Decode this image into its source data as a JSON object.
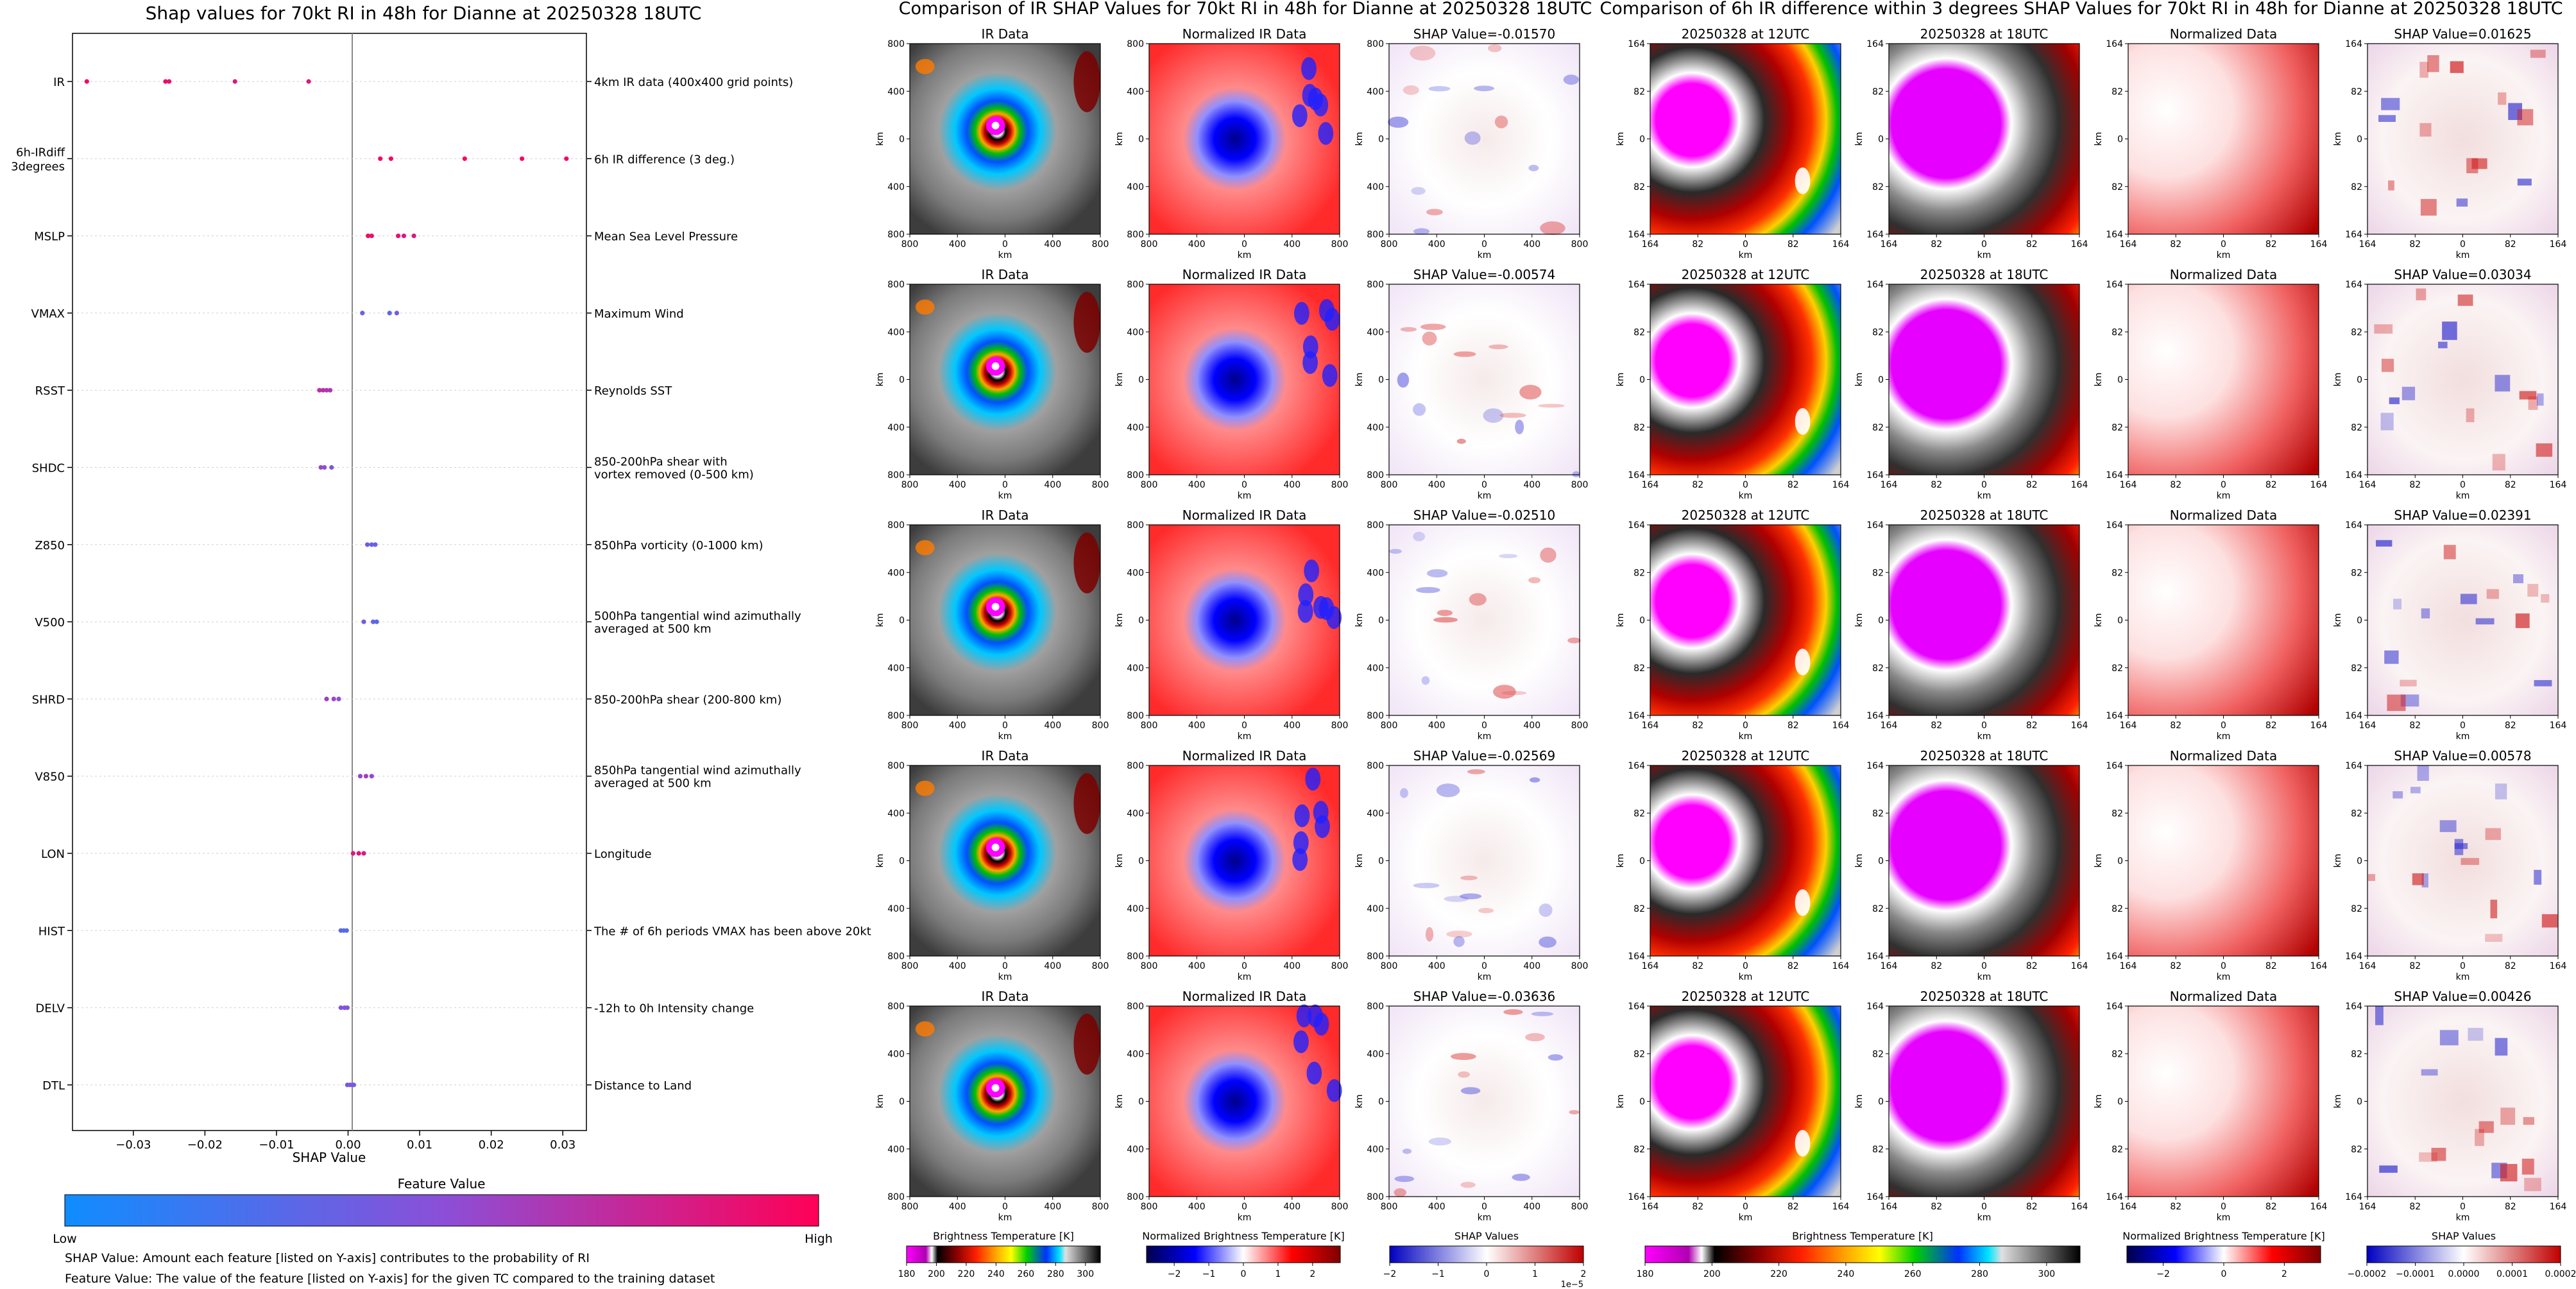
{
  "chart_data": [
    {
      "type": "scatter",
      "title": "Shap values for 70kt RI in 48h for Dianne at 20250328 18UTC",
      "xlabel": "SHAP Value",
      "ylabel": "",
      "xlim": [
        -0.0385,
        0.0333
      ],
      "xticks": [
        -0.03,
        -0.02,
        -0.01,
        0.0,
        0.01,
        0.02,
        0.03
      ],
      "xtick_labels": [
        "−0.03",
        "−0.02",
        "−0.01",
        "0.00",
        "0.01",
        "0.02",
        "0.03"
      ],
      "colorbar": {
        "title": "Feature Value",
        "low_label": "Low",
        "high_label": "High"
      },
      "colors": {
        "low": "#0f8dff",
        "mid": "#8b4fd8",
        "high": "#ff0057"
      },
      "notes": [
        "SHAP Value: Amount each feature [listed on Y-axis] contributes to the probability of RI",
        "Feature Value: The value of the feature [listed on Y-axis] for the given TC compared to the training dataset"
      ],
      "features": [
        {
          "name": "IR",
          "description": [
            "4km IR data (400x400 grid points)"
          ],
          "shap": [
            -0.0365,
            -0.0255,
            -0.025,
            -0.0158,
            -0.0055
          ],
          "feature_value": [
            0.95,
            0.95,
            0.9,
            0.85,
            0.85
          ]
        },
        {
          "name": "6h-IRdiff\n3degrees",
          "display": [
            "6h-IRdiff",
            "3degrees"
          ],
          "description": [
            "6h IR difference (3 deg.)"
          ],
          "shap": [
            0.0045,
            0.006,
            0.0163,
            0.0243,
            0.0305
          ],
          "feature_value": [
            0.95,
            0.95,
            0.95,
            0.95,
            0.95
          ]
        },
        {
          "name": "MSLP",
          "description": [
            "Mean Sea Level Pressure"
          ],
          "shap": [
            0.0028,
            0.0033,
            0.007,
            0.0078,
            0.0092
          ],
          "feature_value": [
            0.95,
            0.9,
            0.9,
            0.85,
            0.85
          ]
        },
        {
          "name": "VMAX",
          "description": [
            "Maximum Wind"
          ],
          "shap": [
            0.002,
            0.0058,
            0.0068
          ],
          "feature_value": [
            0.35,
            0.3,
            0.4
          ]
        },
        {
          "name": "RSST",
          "description": [
            "Reynolds SST"
          ],
          "shap": [
            -0.004,
            -0.0035,
            -0.003,
            -0.0025
          ],
          "feature_value": [
            0.7,
            0.7,
            0.65,
            0.65
          ]
        },
        {
          "name": "SHDC",
          "description": [
            "850-200hPa shear with",
            "vortex removed (0-500 km)"
          ],
          "shap": [
            -0.0038,
            -0.0033,
            -0.0023
          ],
          "feature_value": [
            0.55,
            0.5,
            0.45
          ]
        },
        {
          "name": "Z850",
          "description": [
            "850hPa vorticity (0-1000 km)"
          ],
          "shap": [
            0.0027,
            0.0033,
            0.0038
          ],
          "feature_value": [
            0.4,
            0.35,
            0.35
          ]
        },
        {
          "name": "V500",
          "description": [
            "500hPa tangential wind azimuthally",
            "averaged at 500 km"
          ],
          "shap": [
            0.0022,
            0.0035,
            0.004
          ],
          "feature_value": [
            0.4,
            0.35,
            0.3
          ]
        },
        {
          "name": "SHRD",
          "description": [
            "850-200hPa shear (200-800 km)"
          ],
          "shap": [
            -0.003,
            -0.002,
            -0.0013
          ],
          "feature_value": [
            0.6,
            0.55,
            0.5
          ]
        },
        {
          "name": "V850",
          "description": [
            "850hPa tangential wind azimuthally",
            "averaged at 500 km"
          ],
          "shap": [
            0.0017,
            0.0025,
            0.0033
          ],
          "feature_value": [
            0.55,
            0.6,
            0.55
          ]
        },
        {
          "name": "LON",
          "description": [
            "Longitude"
          ],
          "shap": [
            0.0007,
            0.0015,
            0.0022
          ],
          "feature_value": [
            0.85,
            0.9,
            0.85
          ]
        },
        {
          "name": "HIST",
          "description": [
            "The # of 6h periods VMAX has been above 20kt"
          ],
          "shap": [
            -0.001,
            -0.0006,
            -0.0002
          ],
          "feature_value": [
            0.3,
            0.25,
            0.3
          ]
        },
        {
          "name": "DELV",
          "description": [
            "-12h to 0h Intensity change"
          ],
          "shap": [
            -0.001,
            -0.0005,
            -0.0001
          ],
          "feature_value": [
            0.45,
            0.5,
            0.45
          ]
        },
        {
          "name": "DTL",
          "description": [
            "Distance to Land"
          ],
          "shap": [
            -0.0001,
            0.0003,
            0.0008
          ],
          "feature_value": [
            0.4,
            0.45,
            0.4
          ]
        }
      ]
    },
    {
      "type": "heatmap",
      "title": "Comparison of IR SHAP Values for 70kt RI in 48h for Dianne at 20250328 18UTC",
      "axis_label": "km",
      "ticks": [
        "800",
        "400",
        "0",
        "400",
        "800"
      ],
      "columns": [
        "IR Data",
        "Normalized IR Data",
        "SHAP Value"
      ],
      "rows_shap_titles": [
        "SHAP Value=-0.01570",
        "SHAP Value=-0.00574",
        "SHAP Value=-0.02510",
        "SHAP Value=-0.02569",
        "SHAP Value=-0.03636"
      ],
      "colorbars": [
        {
          "label": "Brightness Temperature [K]",
          "ticks": [
            "180",
            "200",
            "220",
            "240",
            "260",
            "280",
            "300"
          ],
          "range": [
            180,
            310
          ]
        },
        {
          "label": "Normalized Brightness Temperature [K]",
          "ticks": [
            "−2",
            "−1",
            "0",
            "1",
            "2"
          ],
          "range": [
            -2.8,
            2.8
          ]
        },
        {
          "label": "SHAP Values",
          "ticks": [
            "−2",
            "−1",
            "0",
            "1",
            "2"
          ],
          "range": [
            -2,
            2
          ],
          "offset": "1e−5"
        }
      ]
    },
    {
      "type": "heatmap",
      "title": "Comparison of 6h IR difference within 3 degrees SHAP Values for 70kt RI in 48h for Dianne at 20250328 18UTC",
      "axis_label": "km",
      "ticks": [
        "164",
        "82",
        "0",
        "82",
        "164"
      ],
      "columns": [
        "20250328 at 12UTC",
        "20250328 at 18UTC",
        "Normalized Data",
        "SHAP Value"
      ],
      "rows_shap_titles": [
        "SHAP Value=0.01625",
        "SHAP Value=0.03034",
        "SHAP Value=0.02391",
        "SHAP Value=0.00578",
        "SHAP Value=0.00426"
      ],
      "colorbars": [
        {
          "label": "Brightness Temperature [K]",
          "ticks": [
            "180",
            "200",
            "220",
            "240",
            "260",
            "280",
            "300"
          ],
          "range": [
            180,
            310
          ]
        },
        {
          "label": "Normalized Brightness Temperature [K]",
          "ticks": [
            "−2",
            "0",
            "2"
          ],
          "range": [
            -3.2,
            3.2
          ]
        },
        {
          "label": "SHAP Values",
          "ticks": [
            "−0.0002",
            "−0.0001",
            "0.0000",
            "0.0001",
            "0.0002"
          ],
          "range": [
            -0.0002,
            0.0002
          ]
        }
      ]
    }
  ],
  "colors": {
    "ir_cold": "#e600e6",
    "shap_pos": "#c80000",
    "shap_neg": "#0000c8"
  }
}
